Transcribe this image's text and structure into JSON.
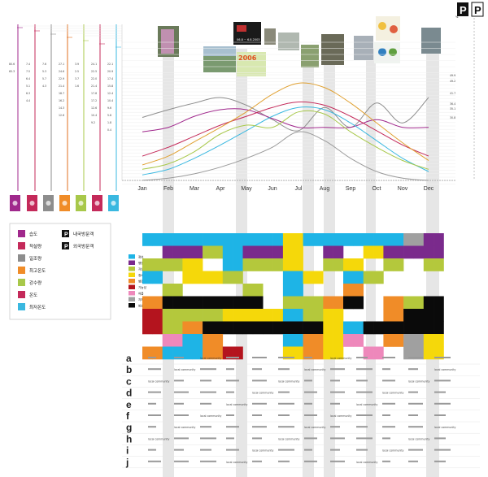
{
  "chart_data": {
    "type": "line",
    "x": [
      "Jan",
      "Feb",
      "Mar",
      "Apr",
      "May",
      "Jun",
      "Jul",
      "Aug",
      "Sep",
      "Oct",
      "Nov",
      "Dec"
    ],
    "ylabel_unit": "%",
    "right_ticks": [
      "49.9",
      "49.2",
      "41.7",
      "36.4",
      "35.1",
      "30.8"
    ],
    "series": [
      {
        "color": "#8d8d8d",
        "values": [
          57,
          64,
          70,
          75,
          68,
          55,
          45,
          66,
          48,
          70,
          52,
          75
        ]
      },
      {
        "color": "#a0288c",
        "values": [
          44,
          48,
          58,
          64,
          64,
          56,
          48,
          48,
          48,
          55,
          48,
          48
        ]
      },
      {
        "color": "#c42a5a",
        "values": [
          22,
          30,
          40,
          50,
          58,
          66,
          71,
          68,
          58,
          45,
          32,
          22
        ]
      },
      {
        "color": "#e0a030",
        "values": [
          14,
          22,
          35,
          48,
          62,
          78,
          88,
          84,
          70,
          52,
          34,
          18
        ]
      },
      {
        "color": "#3ab8e0",
        "values": [
          5,
          10,
          20,
          32,
          45,
          58,
          66,
          64,
          52,
          36,
          20,
          8
        ]
      },
      {
        "color": "#a8c84a",
        "values": [
          10,
          15,
          26,
          42,
          50,
          48,
          62,
          60,
          44,
          30,
          18,
          10
        ]
      },
      {
        "color": "#9a9a9a",
        "values": [
          0,
          2,
          6,
          12,
          20,
          30,
          44,
          36,
          20,
          8,
          2,
          0
        ]
      }
    ]
  },
  "topleft_axes": [
    {
      "color": "#a0288c",
      "ticks": [
        "80.6",
        "65.3"
      ]
    },
    {
      "color": "#c42a5a",
      "ticks": [
        "7.4",
        "7.5",
        "6.4",
        "5.1",
        "6.3",
        "4.4"
      ]
    },
    {
      "color": "#8d8d8d",
      "ticks": [
        "7.6",
        "5.3",
        "5.7",
        "4.3"
      ]
    },
    {
      "color": "#e07020",
      "ticks": [
        "27.1",
        "24.6",
        "22.9",
        "21.4",
        "18.7",
        "16.2",
        "14.3",
        "12.6"
      ]
    },
    {
      "color": "#a8c84a",
      "ticks": [
        "3.9",
        "2.5",
        "3.7",
        "1.6"
      ]
    },
    {
      "color": "#c42a5a",
      "ticks": [
        "24.1",
        "22.5",
        "22.0",
        "21.4",
        "17.8",
        "17.2",
        "12.6",
        "10.4",
        "9.2"
      ]
    },
    {
      "color": "#3ab8e0",
      "ticks": [
        "22.1",
        "20.9",
        "17.4",
        "15.8",
        "12.4",
        "10.4",
        "9.6",
        "5.8",
        "1.8",
        "0.4"
      ]
    }
  ],
  "poster_text": {
    "year": "2006",
    "dates": "06.8 ~ 6.8.2003"
  },
  "legend": {
    "left": [
      "습도",
      "적설량",
      "일조량",
      "최고온도",
      "강수량",
      "온도",
      "최저온도"
    ],
    "right": [
      "내국방문객",
      "외국방문객"
    ],
    "small": [
      "정보",
      "행정지도소",
      "자연공원",
      "청소년기관",
      "행정정보",
      "기능성",
      "여름",
      "자치단체센터",
      "방송시설"
    ]
  },
  "grid": {
    "colors": {
      "B": "#1eb4e6",
      "P": "#7a2a8c",
      "G": "#b4c83c",
      "Y": "#f5d80a",
      "O": "#f08c28",
      "R": "#b4141e",
      "K": "#0a0a0a",
      "N": "#ee88bb",
      "S": "#a0a0a0",
      "W": "#ffffff"
    },
    "rows": [
      "BBBBBBBBBBBBBBYYBBBBBBBBBBSSPP",
      "WWPPPPGGBBPPPPYYWWPPWWYYPPPPPP",
      "GGGGYYWWBBGGGGYYWWGGYYWWGGWWGG",
      "BBWWYYYYGGWWWWBBYYWWBBGGWWWWWW",
      "WWGGWWWWWWGGWWBBWWWWOOWWWWWWWW",
      "OOKKKKKKKKKKWWGGGGOOKKWWOOGGKK",
      "RRGGGGGGYYYYYYBBGGYYWWWWOOKKKK",
      "RRGGOOKKKKKKKKKKKKYYBBKKKKKKKK",
      "WWNNBBOOWWWWWWBBOOYYNNWWOOSSYY",
      "OOBBBBOORRWWWWYYOOYYWWNNWWSSYY"
    ]
  },
  "table_rows": [
    "a",
    "b",
    "c",
    "d",
    "e",
    "f",
    "g",
    "h",
    "i",
    "j"
  ],
  "table_terms": [
    "local community",
    "transit"
  ]
}
